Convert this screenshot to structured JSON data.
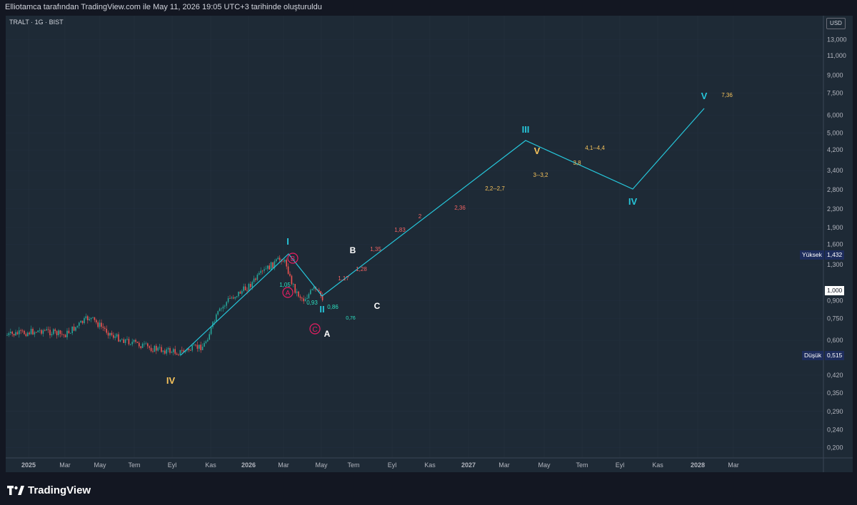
{
  "header": {
    "caption": "Elliotamca tarafından TradingView.com ile May 11, 2026 19:05 UTC+3 tarihinde oluşturuldu"
  },
  "symbol_line": "TRALT · 1G · BIST",
  "currency_button": "USD",
  "branding": {
    "logo_text": "TradingView"
  },
  "colors": {
    "background": "#1e2a36",
    "wave_line": "#26c6da",
    "price_up": "#26a69a",
    "price_down": "#ef5350",
    "label_red": "#f06262",
    "label_orange": "#f6c35b",
    "label_pink": "#e91e63",
    "label_teal": "#2de0c0"
  },
  "chart_data": {
    "type": "candlestick",
    "y_scale": "log",
    "y_ticks": [
      "13,000",
      "11,000",
      "9,000",
      "7,500",
      "6,000",
      "5,000",
      "4,200",
      "3,400",
      "2,800",
      "2,300",
      "1,900",
      "1,600",
      "1,300",
      "0,900",
      "0,750",
      "0,600",
      "0,420",
      "0,350",
      "0,290",
      "0,240",
      "0,200"
    ],
    "x_ticks": [
      "2025",
      "Mar",
      "May",
      "Tem",
      "Eyl",
      "Kas",
      "2026",
      "Mar",
      "May",
      "Tem",
      "Eyl",
      "Kas",
      "2027",
      "Mar",
      "May",
      "Tem",
      "Eyl",
      "Kas",
      "2028",
      "Mar"
    ],
    "price_labels": [
      {
        "name": "Yüksek",
        "value": "1,432"
      },
      {
        "name": "",
        "value": "1,000"
      },
      {
        "name": "Düşük",
        "value": "0,515"
      }
    ],
    "wave_labels": [
      {
        "text": "IV",
        "color": "orange"
      },
      {
        "text": "I",
        "color": "cyan"
      },
      {
        "text": "II",
        "color": "cyan"
      },
      {
        "text": "III",
        "color": "cyan"
      },
      {
        "text": "IV",
        "color": "cyan"
      },
      {
        "text": "V",
        "color": "cyan"
      },
      {
        "text": "V",
        "color": "orange"
      },
      {
        "text": "A",
        "color": "white"
      },
      {
        "text": "B",
        "color": "white"
      },
      {
        "text": "C",
        "color": "white"
      }
    ],
    "circle_labels": [
      "B",
      "A",
      "C"
    ],
    "target_labels": [
      {
        "text": "1,05",
        "color": "teal"
      },
      {
        "text": "0,93",
        "color": "teal"
      },
      {
        "text": "0,86",
        "color": "teal"
      },
      {
        "text": "0,76",
        "color": "teal"
      },
      {
        "text": "1,17",
        "color": "red"
      },
      {
        "text": "1,28",
        "color": "red"
      },
      {
        "text": "1,35",
        "color": "red"
      },
      {
        "text": "1,83",
        "color": "red"
      },
      {
        "text": "2",
        "color": "red"
      },
      {
        "text": "2,36",
        "color": "red"
      },
      {
        "text": "2,2--2,7",
        "color": "orange"
      },
      {
        "text": "3--3,2",
        "color": "orange"
      },
      {
        "text": "3,8",
        "color": "orange"
      },
      {
        "text": "4,1--4,4",
        "color": "orange"
      },
      {
        "text": "7,36",
        "color": "orange"
      }
    ]
  }
}
